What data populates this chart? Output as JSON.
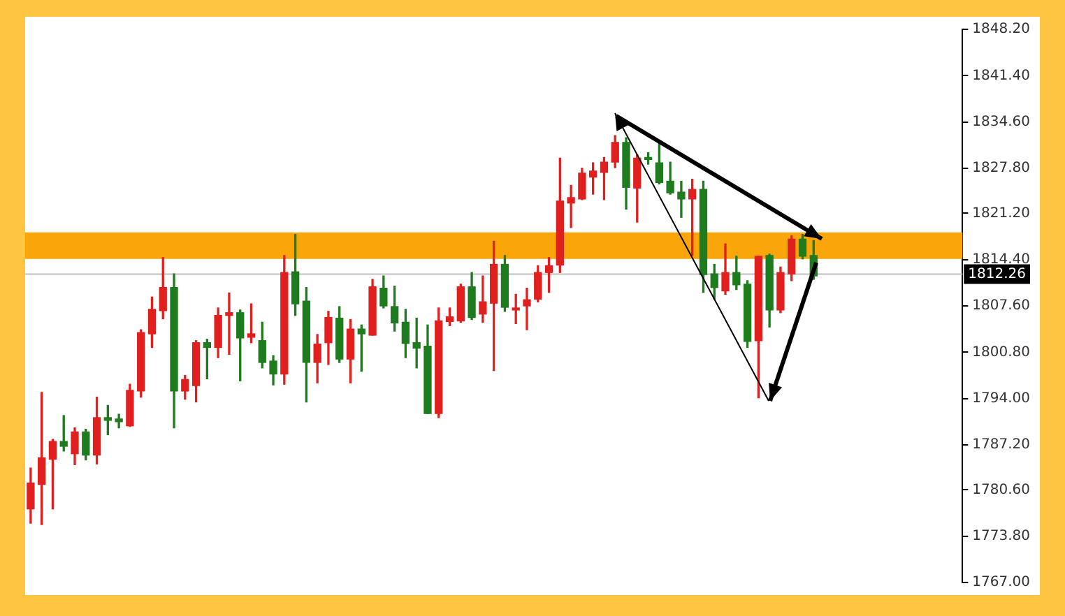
{
  "chart_data": {
    "type": "candlestick",
    "categories": [
      null,
      null,
      null,
      null,
      null,
      null,
      null,
      null,
      null,
      null,
      null,
      null,
      null,
      null,
      null,
      null,
      null,
      null,
      null,
      null,
      null,
      null,
      null,
      null,
      null,
      null,
      null,
      null,
      null,
      null,
      null,
      null,
      null,
      null,
      null,
      null,
      null,
      null,
      null,
      null,
      null,
      null,
      null,
      null,
      null,
      null,
      null,
      null,
      null,
      null,
      null,
      null,
      null,
      null,
      null,
      null,
      null,
      null,
      null,
      null,
      null,
      null,
      null,
      null,
      null,
      null,
      null,
      null,
      null,
      null,
      null,
      null,
      null,
      null,
      null,
      null,
      null,
      null,
      null,
      null,
      null,
      null,
      null,
      null,
      null
    ],
    "ohlc": [
      [
        1777.8,
        1783.8,
        1775.7,
        1781.6
      ],
      [
        1781.4,
        1794.9,
        1775.5,
        1785.3
      ],
      [
        1785.1,
        1788.0,
        1777.8,
        1787.7
      ],
      [
        1787.7,
        1791.5,
        1786.3,
        1787.0
      ],
      [
        1785.9,
        1789.7,
        1784.3,
        1789.1
      ],
      [
        1789.1,
        1789.5,
        1785.0,
        1785.7
      ],
      [
        1785.7,
        1794.2,
        1784.4,
        1791.2
      ],
      [
        1791.2,
        1793.0,
        1788.7,
        1790.8
      ],
      [
        1791.0,
        1791.7,
        1789.7,
        1790.6
      ],
      [
        1790.0,
        1796.1,
        1789.9,
        1795.2
      ],
      [
        1795.1,
        1804.1,
        1794.2,
        1803.7
      ],
      [
        1803.5,
        1808.9,
        1801.5,
        1807.1
      ],
      [
        1806.9,
        1814.7,
        1805.7,
        1810.3
      ],
      [
        1810.3,
        1812.3,
        1789.7,
        1795.1
      ],
      [
        1795.1,
        1797.4,
        1793.9,
        1796.8
      ],
      [
        1795.9,
        1802.5,
        1793.5,
        1802.2
      ],
      [
        1802.2,
        1802.7,
        1796.9,
        1801.5
      ],
      [
        1801.5,
        1807.3,
        1800.0,
        1806.2
      ],
      [
        1806.2,
        1809.5,
        1800.5,
        1806.6
      ],
      [
        1806.6,
        1807.0,
        1796.6,
        1802.9
      ],
      [
        1803.0,
        1807.9,
        1802.2,
        1803.5
      ],
      [
        1802.5,
        1805.2,
        1798.5,
        1799.3
      ],
      [
        1799.5,
        1800.3,
        1796.0,
        1797.6
      ],
      [
        1797.6,
        1815.0,
        1796.1,
        1812.5
      ],
      [
        1812.6,
        1818.1,
        1806.2,
        1807.9
      ],
      [
        1808.3,
        1810.3,
        1793.5,
        1799.3
      ],
      [
        1799.3,
        1803.4,
        1796.3,
        1802.0
      ],
      [
        1802.2,
        1806.8,
        1799.0,
        1805.9
      ],
      [
        1805.8,
        1807.5,
        1799.3,
        1799.8
      ],
      [
        1799.8,
        1805.6,
        1796.3,
        1804.2
      ],
      [
        1804.2,
        1804.8,
        1798.0,
        1803.5
      ],
      [
        1803.3,
        1811.5,
        1803.3,
        1810.4
      ],
      [
        1810.2,
        1812.0,
        1807.3,
        1807.6
      ],
      [
        1807.5,
        1810.5,
        1803.9,
        1805.1
      ],
      [
        1805.2,
        1807.1,
        1800.0,
        1802.1
      ],
      [
        1802.2,
        1805.8,
        1798.5,
        1801.4
      ],
      [
        1801.7,
        1804.8,
        1791.8,
        1791.8
      ],
      [
        1791.8,
        1807.3,
        1791.2,
        1805.4
      ],
      [
        1805.3,
        1807.3,
        1804.7,
        1806.0
      ],
      [
        1805.4,
        1810.8,
        1805.2,
        1810.4
      ],
      [
        1810.4,
        1812.5,
        1805.6,
        1805.9
      ],
      [
        1806.4,
        1812.0,
        1805.2,
        1808.2
      ],
      [
        1808.0,
        1817.1,
        1798.1,
        1813.7
      ],
      [
        1813.7,
        1815.0,
        1806.8,
        1807.4
      ],
      [
        1807.0,
        1809.3,
        1805.0,
        1807.3
      ],
      [
        1807.6,
        1810.2,
        1804.1,
        1808.5
      ],
      [
        1808.6,
        1813.5,
        1808.2,
        1812.5
      ],
      [
        1812.5,
        1814.7,
        1809.6,
        1813.5
      ],
      [
        1813.6,
        1829.3,
        1812.5,
        1823.0
      ],
      [
        1822.7,
        1825.3,
        1819.1,
        1823.5
      ],
      [
        1823.3,
        1827.8,
        1823.2,
        1827.1
      ],
      [
        1826.5,
        1828.6,
        1824.0,
        1827.4
      ],
      [
        1827.2,
        1829.4,
        1823.2,
        1828.7
      ],
      [
        1828.7,
        1832.6,
        1827.9,
        1831.6
      ],
      [
        1831.6,
        1832.3,
        1821.8,
        1825.0
      ],
      [
        1824.9,
        1829.8,
        1819.9,
        1829.3
      ],
      [
        1829.4,
        1830.1,
        1828.4,
        1829.1
      ],
      [
        1828.6,
        1831.8,
        1825.5,
        1825.7
      ],
      [
        1825.9,
        1828.7,
        1824.0,
        1824.2
      ],
      [
        1824.3,
        1825.9,
        1820.6,
        1823.3
      ],
      [
        1823.3,
        1826.2,
        1815.0,
        1824.7
      ],
      [
        1824.7,
        1825.9,
        1809.6,
        1812.2
      ],
      [
        1812.3,
        1813.7,
        1808.6,
        1810.3
      ],
      [
        1809.8,
        1816.7,
        1809.3,
        1812.5
      ],
      [
        1812.5,
        1814.9,
        1810.0,
        1810.7
      ],
      [
        1810.8,
        1811.3,
        1801.5,
        1802.4
      ],
      [
        1802.5,
        1814.9,
        1794.1,
        1814.9
      ],
      [
        1815.0,
        1815.2,
        1804.5,
        1807.0
      ],
      [
        1807.0,
        1813.3,
        1806.6,
        1812.5
      ],
      [
        1812.3,
        1817.9,
        1811.3,
        1817.4
      ],
      [
        1817.4,
        1818.1,
        1814.5,
        1814.9
      ],
      [
        1815.0,
        1817.2,
        1811.5,
        1812.0
      ],
      null,
      null,
      null,
      null,
      null,
      null,
      null,
      null,
      null,
      null,
      null,
      null,
      null
    ],
    "colors": [
      "#e0201f",
      "#e0201f",
      "#e0201f",
      "#1e7b1e",
      "#e0201f",
      "#1e7b1e",
      "#e0201f",
      "#1e7b1e",
      "#1e7b1e",
      "#e0201f",
      "#e0201f",
      "#e0201f",
      "#e0201f",
      "#1e7b1e",
      "#e0201f",
      "#e0201f",
      "#1e7b1e",
      "#e0201f",
      "#e0201f",
      "#1e7b1e",
      "#e0201f",
      "#1e7b1e",
      "#1e7b1e",
      "#e0201f",
      "#1e7b1e",
      "#1e7b1e",
      "#e0201f",
      "#e0201f",
      "#1e7b1e",
      "#e0201f",
      "#1e7b1e",
      "#e0201f",
      "#1e7b1e",
      "#1e7b1e",
      "#1e7b1e",
      "#1e7b1e",
      "#1e7b1e",
      "#e0201f",
      "#e0201f",
      "#e0201f",
      "#1e7b1e",
      "#e0201f",
      "#e0201f",
      "#1e7b1e",
      "#e0201f",
      "#e0201f",
      "#e0201f",
      "#e0201f",
      "#e0201f",
      "#e0201f",
      "#e0201f",
      "#e0201f",
      "#e0201f",
      "#e0201f",
      "#1e7b1e",
      "#e0201f",
      "#1e7b1e",
      "#1e7b1e",
      "#1e7b1e",
      "#1e7b1e",
      "#e0201f",
      "#1e7b1e",
      "#1e7b1e",
      "#e0201f",
      "#1e7b1e",
      "#1e7b1e",
      "#e0201f",
      "#1e7b1e",
      "#e0201f",
      "#e0201f",
      "#1e7b1e",
      "#1e7b1e",
      null,
      null,
      null,
      null,
      null,
      null,
      null,
      null,
      null,
      null,
      null,
      null,
      null
    ],
    "ylim": [
      1767.0,
      1848.2
    ],
    "yticks": [
      {
        "value": 1767.0,
        "label": "1767.00"
      },
      {
        "value": 1773.8,
        "label": "1773.80"
      },
      {
        "value": 1780.6,
        "label": "1780.60"
      },
      {
        "value": 1787.2,
        "label": "1787.20"
      },
      {
        "value": 1794.0,
        "label": "1794.00"
      },
      {
        "value": 1800.8,
        "label": "1800.80"
      },
      {
        "value": 1807.6,
        "label": "1807.60"
      },
      {
        "value": 1814.4,
        "label": "1814.40"
      },
      {
        "value": 1821.2,
        "label": "1821.20"
      },
      {
        "value": 1827.8,
        "label": "1827.80"
      },
      {
        "value": 1834.6,
        "label": "1834.60"
      },
      {
        "value": 1841.4,
        "label": "1841.40"
      },
      {
        "value": 1848.2,
        "label": "1848.20"
      }
    ],
    "tick_labels": "y",
    "grid": false,
    "legend": false,
    "ref_lines": [
      {
        "axis": "y",
        "value": 1812.26,
        "label": "1812.26",
        "color": "#c0c0c0"
      }
    ],
    "bands": [
      {
        "axis": "y",
        "from": 1814.5,
        "to": 1818.4,
        "color": "#faa50a"
      }
    ]
  }
}
